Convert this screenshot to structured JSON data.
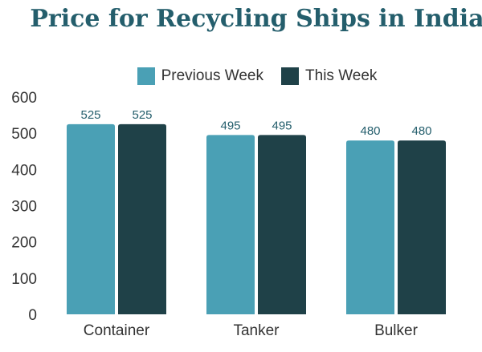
{
  "chart_data": {
    "type": "bar",
    "title": "Price for Recycling Ships in India",
    "categories": [
      "Container",
      "Tanker",
      "Bulker"
    ],
    "series": [
      {
        "name": "Previous Week",
        "values": [
          525,
          495,
          480
        ],
        "color": "#4aa0b5"
      },
      {
        "name": "This Week",
        "values": [
          525,
          495,
          480
        ],
        "color": "#1f4148"
      }
    ],
    "yticks": [
      "0",
      "100",
      "200",
      "300",
      "400",
      "500",
      "600"
    ],
    "ylim": [
      0,
      600
    ],
    "legend_position": "top-center",
    "grid": false
  },
  "colors": {
    "title": "#245e6c",
    "value_label": "#245e6c",
    "text": "#333333"
  }
}
